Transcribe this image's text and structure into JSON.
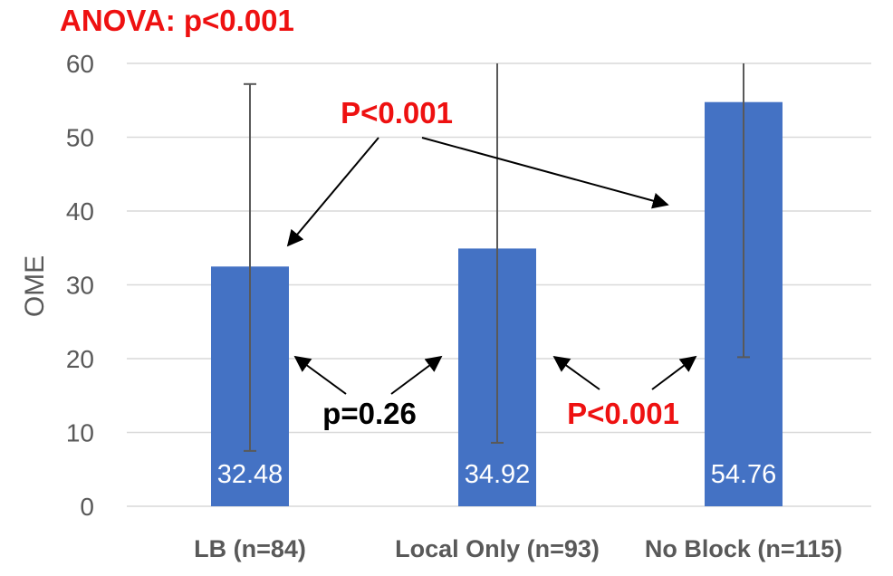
{
  "chart_data": {
    "type": "bar",
    "title": "ANOVA: p<0.001",
    "ylabel": "OME",
    "xlabel": "",
    "ylim": [
      0,
      60
    ],
    "yticks": [
      0,
      10,
      20,
      30,
      40,
      50,
      60
    ],
    "grid": true,
    "categories": [
      "LB (n=84)",
      "Local Only (n=93)",
      "No Block (n=115)"
    ],
    "values": [
      32.48,
      34.92,
      54.76
    ],
    "value_labels": [
      "32.48",
      "34.92",
      "54.76"
    ],
    "error_low": [
      7.5,
      8.6,
      20.2
    ],
    "error_high": [
      57.2,
      60,
      60
    ],
    "bar_color": "#4472c4",
    "annotations": [
      {
        "text": "P<0.001",
        "color": "#ee1111",
        "compares": [
          "LB (n=84)",
          "No Block (n=115)"
        ]
      },
      {
        "text": "p=0.26",
        "color": "#000000",
        "compares": [
          "LB (n=84)",
          "Local Only (n=93)"
        ]
      },
      {
        "text": "P<0.001",
        "color": "#ee1111",
        "compares": [
          "Local Only (n=93)",
          "No Block (n=115)"
        ]
      }
    ]
  }
}
